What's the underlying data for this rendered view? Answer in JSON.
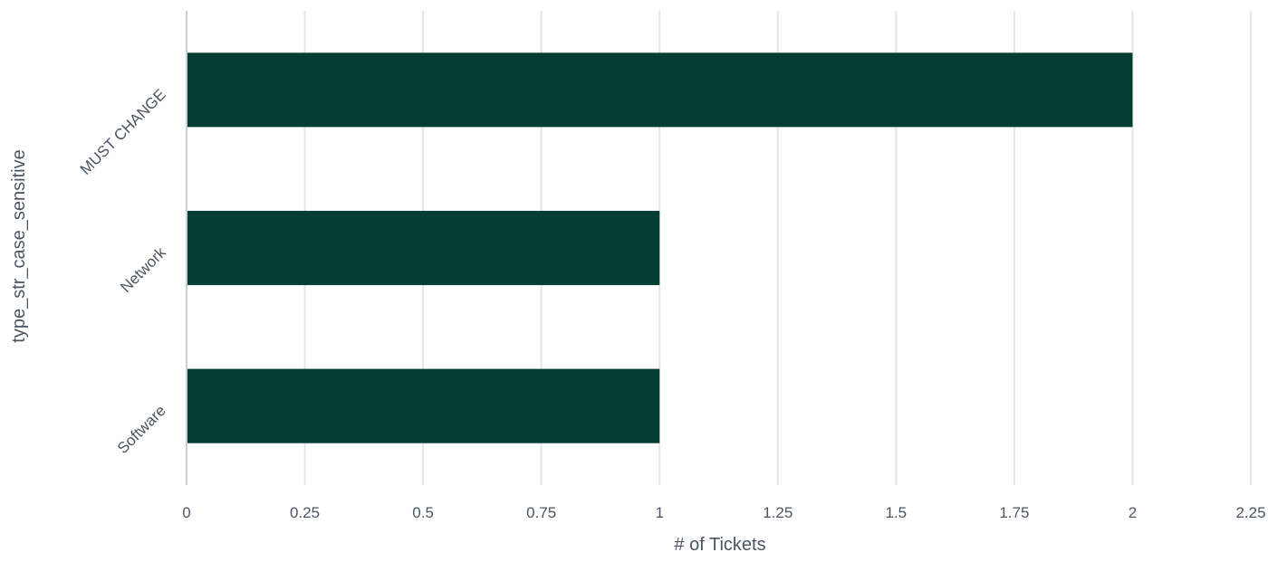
{
  "chart_data": {
    "type": "bar",
    "orientation": "horizontal",
    "categories": [
      "MUST CHANGE",
      "Network",
      "Software"
    ],
    "values": [
      2,
      1,
      1
    ],
    "xlabel": "# of Tickets",
    "ylabel": "type_str_case_sensitive",
    "xlim": [
      0,
      2.25
    ],
    "xticks": [
      0,
      0.25,
      0.5,
      0.75,
      1,
      1.25,
      1.5,
      1.75,
      2,
      2.25
    ],
    "xtick_labels": [
      "0",
      "0.25",
      "0.5",
      "0.75",
      "1",
      "1.25",
      "1.5",
      "1.75",
      "2",
      "2.25"
    ],
    "grid": true,
    "legend": false,
    "bar_color": "#033d33",
    "grid_color": "#e3e6ea",
    "axis_color": "#c6d0df"
  }
}
